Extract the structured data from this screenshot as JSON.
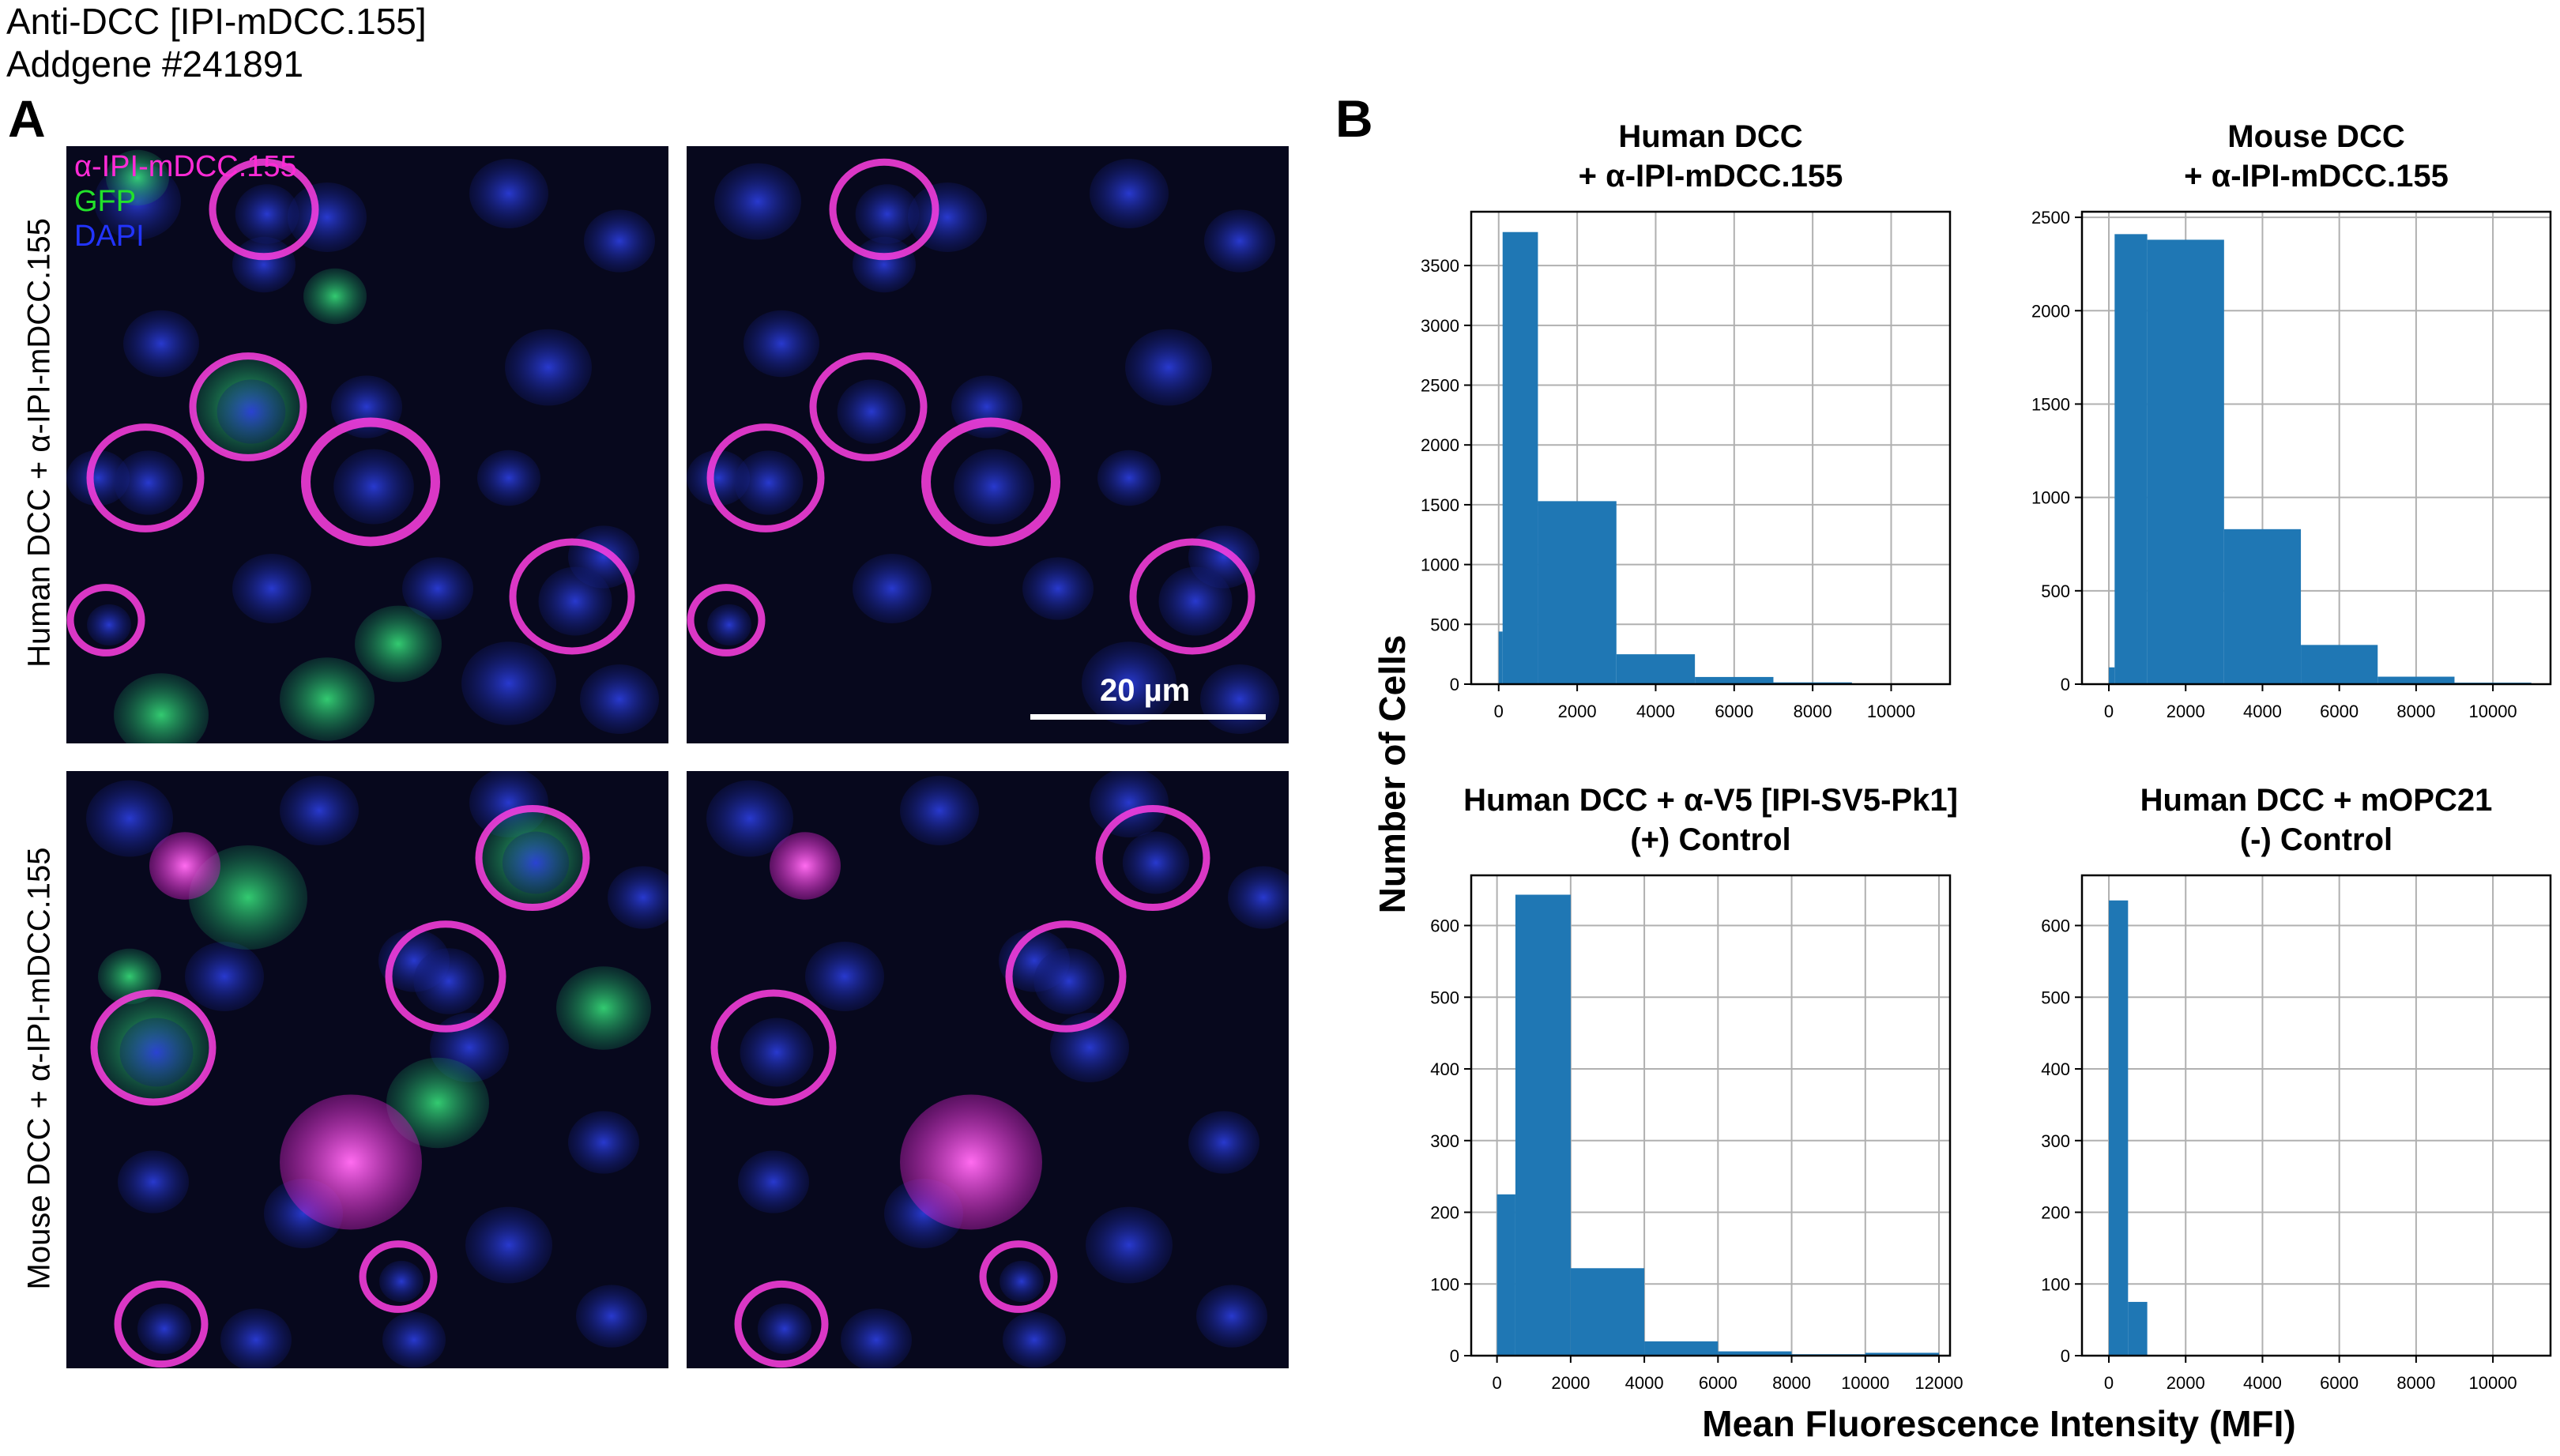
{
  "header": {
    "line1": "Anti-DCC [IPI-mDCC.155]",
    "line2": "Addgene #241891"
  },
  "panel_a": {
    "letter": "A",
    "row_labels": [
      "Human DCC + α-IPI-mDCC.155",
      "Mouse DCC + α-IPI-mDCC.155"
    ],
    "legend": [
      {
        "text": "α-IPI-mDCC.155",
        "color": "#ff2bd6"
      },
      {
        "text": "GFP",
        "color": "#22e22a"
      },
      {
        "text": "DAPI",
        "color": "#2234ff"
      }
    ],
    "scale_bar_label": "20 µm"
  },
  "panel_b": {
    "letter": "B",
    "ylabel": "Number of Cells",
    "xlabel": "Mean Fluorescence Intensity (MFI)"
  },
  "colors": {
    "bar": "#1f77b4",
    "grid": "#b0b0b0",
    "magenta": "#ff2bd6",
    "green": "#22e22a",
    "blue": "#2234ff"
  },
  "chart_data": [
    {
      "type": "bar",
      "title_lines": [
        "Human DCC",
        "+ α-IPI-mDCC.155"
      ],
      "xlim": [
        -700,
        11500
      ],
      "ylim": [
        0,
        3950
      ],
      "xticks": [
        0,
        2000,
        4000,
        6000,
        8000,
        10000
      ],
      "yticks": [
        0,
        500,
        1000,
        1500,
        2000,
        2500,
        3000,
        3500
      ],
      "bins": [
        [
          0,
          100,
          440
        ],
        [
          100,
          1000,
          3780
        ],
        [
          1000,
          3000,
          1530
        ],
        [
          3000,
          5000,
          250
        ],
        [
          5000,
          7000,
          60
        ],
        [
          7000,
          9000,
          15
        ],
        [
          9000,
          11000,
          5
        ]
      ]
    },
    {
      "type": "bar",
      "title_lines": [
        "Mouse DCC",
        "+ α-IPI-mDCC.155"
      ],
      "xlim": [
        -700,
        11500
      ],
      "ylim": [
        0,
        2530
      ],
      "xticks": [
        0,
        2000,
        4000,
        6000,
        8000,
        10000
      ],
      "yticks": [
        0,
        500,
        1000,
        1500,
        2000,
        2500
      ],
      "bins": [
        [
          0,
          150,
          90
        ],
        [
          150,
          1000,
          2410
        ],
        [
          1000,
          3000,
          2380
        ],
        [
          3000,
          5000,
          830
        ],
        [
          5000,
          7000,
          210
        ],
        [
          7000,
          9000,
          40
        ],
        [
          9000,
          11000,
          8
        ]
      ]
    },
    {
      "type": "bar",
      "title_lines": [
        "Human DCC + α-V5 [IPI-SV5-Pk1]",
        "(+) Control"
      ],
      "xlim": [
        -700,
        12300
      ],
      "ylim": [
        0,
        670
      ],
      "xticks": [
        0,
        2000,
        4000,
        6000,
        8000,
        10000,
        12000
      ],
      "yticks": [
        0,
        100,
        200,
        300,
        400,
        500,
        600
      ],
      "bins": [
        [
          0,
          500,
          225
        ],
        [
          500,
          2000,
          643
        ],
        [
          2000,
          4000,
          122
        ],
        [
          4000,
          6000,
          20
        ],
        [
          6000,
          8000,
          6
        ],
        [
          8000,
          10000,
          2
        ],
        [
          10000,
          12000,
          4
        ]
      ]
    },
    {
      "type": "bar",
      "title_lines": [
        "Human DCC + mOPC21",
        "(-) Control"
      ],
      "xlim": [
        -700,
        11500
      ],
      "ylim": [
        0,
        670
      ],
      "xticks": [
        0,
        2000,
        4000,
        6000,
        8000,
        10000
      ],
      "yticks": [
        0,
        100,
        200,
        300,
        400,
        500,
        600
      ],
      "bins": [
        [
          0,
          500,
          635
        ],
        [
          500,
          1000,
          75
        ]
      ]
    }
  ]
}
